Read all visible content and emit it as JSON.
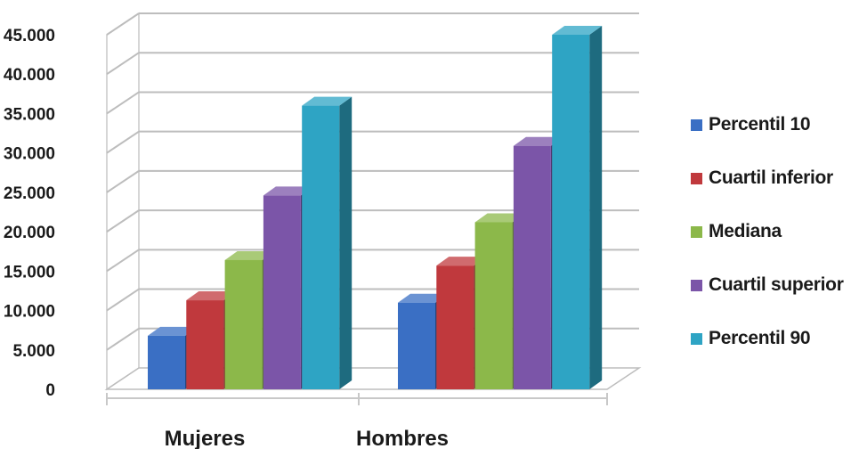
{
  "chart_data": {
    "type": "bar",
    "categories": [
      "Mujeres",
      "Hombres"
    ],
    "series": [
      {
        "name": "Percentil 10",
        "color": "#3a6fc4",
        "values": [
          6800,
          11000
        ]
      },
      {
        "name": "Cuartil inferior",
        "color": "#c0393d",
        "values": [
          11300,
          15700
        ]
      },
      {
        "name": "Mediana",
        "color": "#8cb84a",
        "values": [
          16400,
          21200
        ]
      },
      {
        "name": "Cuartil superior",
        "color": "#7b55a8",
        "values": [
          24600,
          30900
        ]
      },
      {
        "name": "Percentil 90",
        "color": "#2ea4c4",
        "values": [
          36000,
          45000
        ]
      }
    ],
    "yticks": [
      "0",
      "5.000",
      "10.000",
      "15.000",
      "20.000",
      "25.000",
      "30.000",
      "35.000",
      "40.000",
      "45.000"
    ],
    "ylim": [
      0,
      45000
    ],
    "grid": true,
    "legend": "right",
    "projection": "3d"
  }
}
